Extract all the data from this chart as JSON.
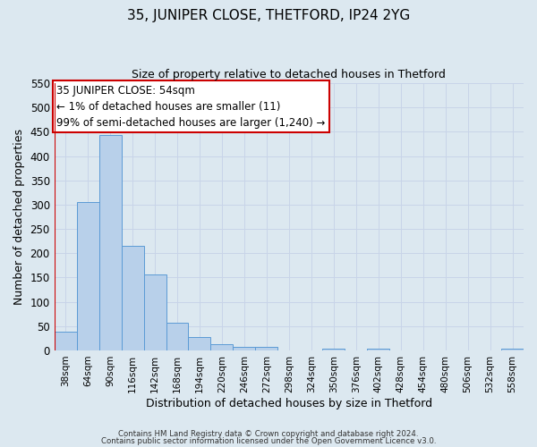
{
  "title": "35, JUNIPER CLOSE, THETFORD, IP24 2YG",
  "subtitle": "Size of property relative to detached houses in Thetford",
  "xlabel": "Distribution of detached houses by size in Thetford",
  "ylabel": "Number of detached properties",
  "bar_labels": [
    "38sqm",
    "64sqm",
    "90sqm",
    "116sqm",
    "142sqm",
    "168sqm",
    "194sqm",
    "220sqm",
    "246sqm",
    "272sqm",
    "298sqm",
    "324sqm",
    "350sqm",
    "376sqm",
    "402sqm",
    "428sqm",
    "454sqm",
    "480sqm",
    "506sqm",
    "532sqm",
    "558sqm"
  ],
  "bar_values": [
    38,
    305,
    443,
    215,
    157,
    57,
    27,
    12,
    7,
    7,
    0,
    0,
    3,
    0,
    3,
    0,
    0,
    0,
    0,
    0,
    3
  ],
  "bar_color": "#b8d0ea",
  "bar_edge_color": "#5b9bd5",
  "ylim": [
    0,
    550
  ],
  "yticks": [
    0,
    50,
    100,
    150,
    200,
    250,
    300,
    350,
    400,
    450,
    500,
    550
  ],
  "property_line_label": "35 JUNIPER CLOSE: 54sqm",
  "annotation_line1": "← 1% of detached houses are smaller (11)",
  "annotation_line2": "99% of semi-detached houses are larger (1,240) →",
  "box_facecolor": "#ffffff",
  "box_edgecolor": "#cc0000",
  "red_line_color": "#cc0000",
  "grid_color": "#c8d4e8",
  "bg_color": "#dce8f0",
  "footer1": "Contains HM Land Registry data © Crown copyright and database right 2024.",
  "footer2": "Contains public sector information licensed under the Open Government Licence v3.0."
}
